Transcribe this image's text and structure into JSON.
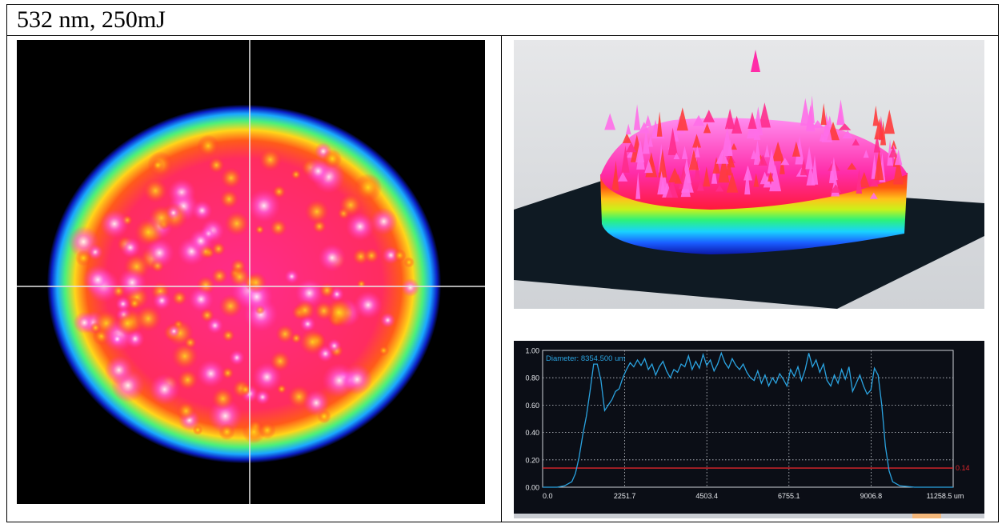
{
  "caption": "532 nm, 250mJ",
  "beam_image_2d": {
    "colormap": [
      "#000000",
      "#0b1fc4",
      "#1a8cff",
      "#1ad8ff",
      "#2cf27a",
      "#d7f71a",
      "#ffe21a",
      "#ff7a1a",
      "#ff1a3a",
      "#ff2ca8",
      "#ff63e6",
      "#ffffff"
    ]
  },
  "beam_surface_3d": {
    "background": "#d9dbde",
    "floor_color": "#0f1a23"
  },
  "chart_data": {
    "type": "line",
    "title": "",
    "annotation": "Diameter: 8354.500 um",
    "x_ticks": [
      "0.0",
      "2251.7",
      "4503.4",
      "6755.1",
      "9006.8",
      "11258.5 um"
    ],
    "y_ticks": [
      "0.00",
      "0.20",
      "0.40",
      "0.60",
      "0.80",
      "1.00"
    ],
    "xlim": [
      0,
      11258.5
    ],
    "ylim": [
      0,
      1.0
    ],
    "threshold": {
      "value": 0.14,
      "label": "0.14",
      "color": "#e0262b"
    },
    "series": [
      {
        "color": "#2aa3e0",
        "x": [
          0,
          400,
          600,
          800,
          900,
          1000,
          1100,
          1200,
          1300,
          1400,
          1500,
          1600,
          1700,
          1800,
          1900,
          2000,
          2100,
          2200,
          2300,
          2400,
          2500,
          2600,
          2700,
          2800,
          2900,
          3000,
          3100,
          3200,
          3300,
          3400,
          3500,
          3600,
          3700,
          3800,
          3900,
          4000,
          4100,
          4200,
          4300,
          4400,
          4500,
          4600,
          4700,
          4800,
          4900,
          5000,
          5100,
          5200,
          5300,
          5400,
          5500,
          5600,
          5700,
          5800,
          5900,
          6000,
          6100,
          6200,
          6300,
          6400,
          6500,
          6600,
          6700,
          6800,
          6900,
          7000,
          7100,
          7200,
          7300,
          7400,
          7500,
          7600,
          7700,
          7800,
          7900,
          8000,
          8100,
          8200,
          8300,
          8400,
          8500,
          8600,
          8700,
          8800,
          8900,
          9000,
          9100,
          9200,
          9300,
          9400,
          9500,
          9600,
          9800,
          10200,
          11258.5
        ],
        "y": [
          0.0,
          0.0,
          0.01,
          0.04,
          0.1,
          0.22,
          0.38,
          0.52,
          0.7,
          0.9,
          0.9,
          0.78,
          0.56,
          0.6,
          0.64,
          0.7,
          0.72,
          0.8,
          0.86,
          0.91,
          0.88,
          0.93,
          0.89,
          0.94,
          0.86,
          0.9,
          0.82,
          0.88,
          0.92,
          0.85,
          0.8,
          0.86,
          0.84,
          0.9,
          0.88,
          0.96,
          0.86,
          0.92,
          0.87,
          0.97,
          0.89,
          0.93,
          0.85,
          0.9,
          0.98,
          0.91,
          0.87,
          0.94,
          0.89,
          0.86,
          0.9,
          0.84,
          0.8,
          0.78,
          0.85,
          0.76,
          0.82,
          0.74,
          0.8,
          0.76,
          0.83,
          0.79,
          0.74,
          0.86,
          0.81,
          0.88,
          0.78,
          0.86,
          0.98,
          0.88,
          0.93,
          0.84,
          0.9,
          0.78,
          0.74,
          0.82,
          0.76,
          0.86,
          0.79,
          0.88,
          0.7,
          0.76,
          0.82,
          0.74,
          0.68,
          0.71,
          0.87,
          0.82,
          0.6,
          0.3,
          0.12,
          0.04,
          0.01,
          0.0,
          0.0
        ]
      }
    ]
  }
}
